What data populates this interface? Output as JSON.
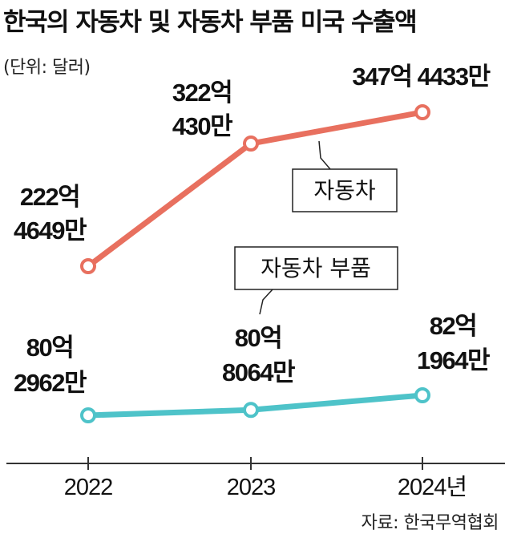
{
  "header": {
    "title": "한국의 자동차 및 자동차 부품 미국 수출액",
    "unit": "(단위: 달러)"
  },
  "footer": {
    "source": "자료: 한국무역협회"
  },
  "colors": {
    "car": "#e8705f",
    "parts": "#4ec3c9",
    "axis": "#333333",
    "background": "#ffffff"
  },
  "chart_data": {
    "type": "line",
    "title": "한국의 자동차 및 자동차 부품 미국 수출액",
    "ylabel": "(단위: 달러)",
    "categories": [
      "2022",
      "2023",
      "2024년"
    ],
    "ylim": [
      0,
      40000000000
    ],
    "grid": false,
    "series": [
      {
        "name": "자동차",
        "values": [
          22246490000,
          32204300000,
          34744330000
        ],
        "labels": [
          [
            "222억",
            "4649만"
          ],
          [
            "322억",
            "430만"
          ],
          [
            "347억 4433만"
          ]
        ]
      },
      {
        "name": "자동차 부품",
        "values": [
          8029620000,
          8080640000,
          8219640000
        ],
        "labels": [
          [
            "80억",
            "2962만"
          ],
          [
            "80억",
            "8064만"
          ],
          [
            "82억",
            "1964만"
          ]
        ]
      }
    ]
  }
}
